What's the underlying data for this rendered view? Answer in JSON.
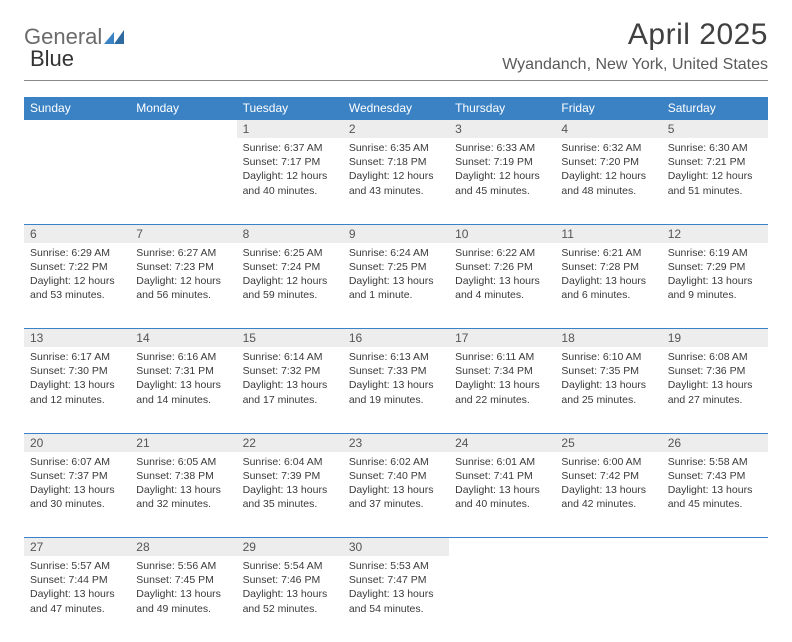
{
  "brand": {
    "part1": "General",
    "part2": "Blue"
  },
  "header": {
    "month_title": "April 2025",
    "location": "Wyandanch, New York, United States"
  },
  "colors": {
    "header_bg": "#3b82c4",
    "header_text": "#ffffff",
    "daynum_bg": "#ededed",
    "border": "#3b82c4",
    "body_text": "#3a3a3a"
  },
  "weekdays": [
    "Sunday",
    "Monday",
    "Tuesday",
    "Wednesday",
    "Thursday",
    "Friday",
    "Saturday"
  ],
  "weeks": [
    [
      null,
      null,
      {
        "n": "1",
        "sr": "Sunrise: 6:37 AM",
        "ss": "Sunset: 7:17 PM",
        "dl1": "Daylight: 12 hours",
        "dl2": "and 40 minutes."
      },
      {
        "n": "2",
        "sr": "Sunrise: 6:35 AM",
        "ss": "Sunset: 7:18 PM",
        "dl1": "Daylight: 12 hours",
        "dl2": "and 43 minutes."
      },
      {
        "n": "3",
        "sr": "Sunrise: 6:33 AM",
        "ss": "Sunset: 7:19 PM",
        "dl1": "Daylight: 12 hours",
        "dl2": "and 45 minutes."
      },
      {
        "n": "4",
        "sr": "Sunrise: 6:32 AM",
        "ss": "Sunset: 7:20 PM",
        "dl1": "Daylight: 12 hours",
        "dl2": "and 48 minutes."
      },
      {
        "n": "5",
        "sr": "Sunrise: 6:30 AM",
        "ss": "Sunset: 7:21 PM",
        "dl1": "Daylight: 12 hours",
        "dl2": "and 51 minutes."
      }
    ],
    [
      {
        "n": "6",
        "sr": "Sunrise: 6:29 AM",
        "ss": "Sunset: 7:22 PM",
        "dl1": "Daylight: 12 hours",
        "dl2": "and 53 minutes."
      },
      {
        "n": "7",
        "sr": "Sunrise: 6:27 AM",
        "ss": "Sunset: 7:23 PM",
        "dl1": "Daylight: 12 hours",
        "dl2": "and 56 minutes."
      },
      {
        "n": "8",
        "sr": "Sunrise: 6:25 AM",
        "ss": "Sunset: 7:24 PM",
        "dl1": "Daylight: 12 hours",
        "dl2": "and 59 minutes."
      },
      {
        "n": "9",
        "sr": "Sunrise: 6:24 AM",
        "ss": "Sunset: 7:25 PM",
        "dl1": "Daylight: 13 hours",
        "dl2": "and 1 minute."
      },
      {
        "n": "10",
        "sr": "Sunrise: 6:22 AM",
        "ss": "Sunset: 7:26 PM",
        "dl1": "Daylight: 13 hours",
        "dl2": "and 4 minutes."
      },
      {
        "n": "11",
        "sr": "Sunrise: 6:21 AM",
        "ss": "Sunset: 7:28 PM",
        "dl1": "Daylight: 13 hours",
        "dl2": "and 6 minutes."
      },
      {
        "n": "12",
        "sr": "Sunrise: 6:19 AM",
        "ss": "Sunset: 7:29 PM",
        "dl1": "Daylight: 13 hours",
        "dl2": "and 9 minutes."
      }
    ],
    [
      {
        "n": "13",
        "sr": "Sunrise: 6:17 AM",
        "ss": "Sunset: 7:30 PM",
        "dl1": "Daylight: 13 hours",
        "dl2": "and 12 minutes."
      },
      {
        "n": "14",
        "sr": "Sunrise: 6:16 AM",
        "ss": "Sunset: 7:31 PM",
        "dl1": "Daylight: 13 hours",
        "dl2": "and 14 minutes."
      },
      {
        "n": "15",
        "sr": "Sunrise: 6:14 AM",
        "ss": "Sunset: 7:32 PM",
        "dl1": "Daylight: 13 hours",
        "dl2": "and 17 minutes."
      },
      {
        "n": "16",
        "sr": "Sunrise: 6:13 AM",
        "ss": "Sunset: 7:33 PM",
        "dl1": "Daylight: 13 hours",
        "dl2": "and 19 minutes."
      },
      {
        "n": "17",
        "sr": "Sunrise: 6:11 AM",
        "ss": "Sunset: 7:34 PM",
        "dl1": "Daylight: 13 hours",
        "dl2": "and 22 minutes."
      },
      {
        "n": "18",
        "sr": "Sunrise: 6:10 AM",
        "ss": "Sunset: 7:35 PM",
        "dl1": "Daylight: 13 hours",
        "dl2": "and 25 minutes."
      },
      {
        "n": "19",
        "sr": "Sunrise: 6:08 AM",
        "ss": "Sunset: 7:36 PM",
        "dl1": "Daylight: 13 hours",
        "dl2": "and 27 minutes."
      }
    ],
    [
      {
        "n": "20",
        "sr": "Sunrise: 6:07 AM",
        "ss": "Sunset: 7:37 PM",
        "dl1": "Daylight: 13 hours",
        "dl2": "and 30 minutes."
      },
      {
        "n": "21",
        "sr": "Sunrise: 6:05 AM",
        "ss": "Sunset: 7:38 PM",
        "dl1": "Daylight: 13 hours",
        "dl2": "and 32 minutes."
      },
      {
        "n": "22",
        "sr": "Sunrise: 6:04 AM",
        "ss": "Sunset: 7:39 PM",
        "dl1": "Daylight: 13 hours",
        "dl2": "and 35 minutes."
      },
      {
        "n": "23",
        "sr": "Sunrise: 6:02 AM",
        "ss": "Sunset: 7:40 PM",
        "dl1": "Daylight: 13 hours",
        "dl2": "and 37 minutes."
      },
      {
        "n": "24",
        "sr": "Sunrise: 6:01 AM",
        "ss": "Sunset: 7:41 PM",
        "dl1": "Daylight: 13 hours",
        "dl2": "and 40 minutes."
      },
      {
        "n": "25",
        "sr": "Sunrise: 6:00 AM",
        "ss": "Sunset: 7:42 PM",
        "dl1": "Daylight: 13 hours",
        "dl2": "and 42 minutes."
      },
      {
        "n": "26",
        "sr": "Sunrise: 5:58 AM",
        "ss": "Sunset: 7:43 PM",
        "dl1": "Daylight: 13 hours",
        "dl2": "and 45 minutes."
      }
    ],
    [
      {
        "n": "27",
        "sr": "Sunrise: 5:57 AM",
        "ss": "Sunset: 7:44 PM",
        "dl1": "Daylight: 13 hours",
        "dl2": "and 47 minutes."
      },
      {
        "n": "28",
        "sr": "Sunrise: 5:56 AM",
        "ss": "Sunset: 7:45 PM",
        "dl1": "Daylight: 13 hours",
        "dl2": "and 49 minutes."
      },
      {
        "n": "29",
        "sr": "Sunrise: 5:54 AM",
        "ss": "Sunset: 7:46 PM",
        "dl1": "Daylight: 13 hours",
        "dl2": "and 52 minutes."
      },
      {
        "n": "30",
        "sr": "Sunrise: 5:53 AM",
        "ss": "Sunset: 7:47 PM",
        "dl1": "Daylight: 13 hours",
        "dl2": "and 54 minutes."
      },
      null,
      null,
      null
    ]
  ]
}
